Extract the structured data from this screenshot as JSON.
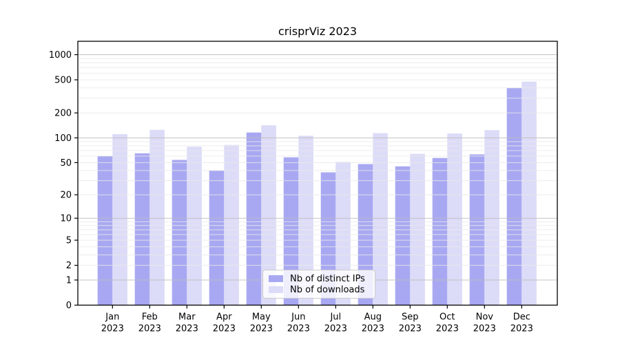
{
  "figure": {
    "title": "crisprViz 2023",
    "background_color": "#ffffff"
  },
  "chart_data": {
    "type": "bar",
    "title": "crisprViz 2023",
    "categories": [
      "Jan 2023",
      "Feb 2023",
      "Mar 2023",
      "Apr 2023",
      "May 2023",
      "Jun 2023",
      "Jul 2023",
      "Aug 2023",
      "Sep 2023",
      "Oct 2023",
      "Nov 2023",
      "Dec 2023"
    ],
    "x_tick_months": [
      "Jan",
      "Feb",
      "Mar",
      "Apr",
      "May",
      "Jun",
      "Jul",
      "Aug",
      "Sep",
      "Oct",
      "Nov",
      "Dec"
    ],
    "x_tick_year": "2023",
    "series": [
      {
        "name": "Nb of distinct IPs",
        "color": "#a8a8f2",
        "values": [
          60,
          65,
          54,
          40,
          116,
          58,
          38,
          48,
          45,
          57,
          63,
          400
        ]
      },
      {
        "name": "Nb of downloads",
        "color": "#dcdcf8",
        "values": [
          111,
          125,
          78,
          82,
          142,
          106,
          51,
          114,
          64,
          113,
          124,
          475
        ]
      }
    ],
    "xlabel": "",
    "ylabel": "",
    "yscale": "log1p",
    "y_ticks": [
      1000,
      500,
      200,
      100,
      50,
      20,
      10,
      5,
      2,
      1,
      0
    ],
    "ylim": [
      0,
      1450
    ],
    "grid": {
      "which": "both",
      "major_color": "#bdbdbd",
      "minor_color": "#e9e9e9"
    },
    "legend_position": "lower center",
    "axis_color": "#000000",
    "text_color": "#000000"
  }
}
